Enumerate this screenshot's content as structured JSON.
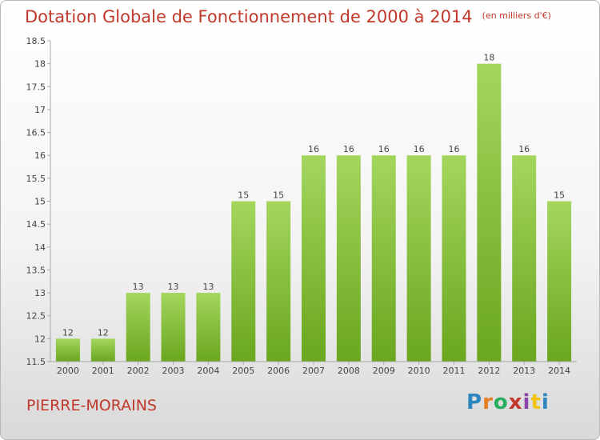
{
  "title": "Dotation Globale de Fonctionnement de 2000 à 2014",
  "unit_note": "(en milliers d'€)",
  "commune": "PIERRE-MORAINS",
  "brand": {
    "text": "Proxiti",
    "letters": [
      {
        "ch": "P",
        "color": "#2e86c1"
      },
      {
        "ch": "r",
        "color": "#e67e22"
      },
      {
        "ch": "o",
        "color": "#27ae60"
      },
      {
        "ch": "x",
        "color": "#c0392b"
      },
      {
        "ch": "i",
        "color": "#8e44ad"
      },
      {
        "ch": "t",
        "color": "#f1c40f"
      },
      {
        "ch": "i",
        "color": "#2e86c1"
      }
    ]
  },
  "chart_data": {
    "type": "bar",
    "title": "Dotation Globale de Fonctionnement de 2000 à 2014",
    "categories": [
      "2000",
      "2001",
      "2002",
      "2003",
      "2004",
      "2005",
      "2006",
      "2007",
      "2008",
      "2009",
      "2010",
      "2011",
      "2012",
      "2013",
      "2014"
    ],
    "values": [
      12,
      12,
      13,
      13,
      13,
      15,
      15,
      16,
      16,
      16,
      16,
      16,
      18,
      16,
      15
    ],
    "ylim": [
      11.5,
      18.5
    ],
    "yticks": [
      11.5,
      12,
      12.5,
      13,
      13.5,
      14,
      14.5,
      15,
      15.5,
      16,
      16.5,
      17,
      17.5,
      18,
      18.5
    ],
    "xlabel": "",
    "ylabel": "",
    "grid": false,
    "bar_color_top": "#a4d65e",
    "bar_color_bottom": "#6aa61e",
    "title_color": "#c0392b"
  }
}
